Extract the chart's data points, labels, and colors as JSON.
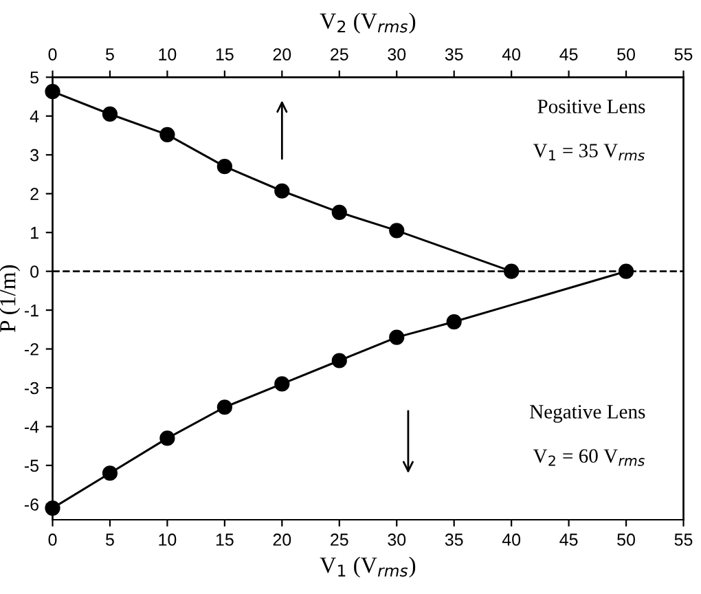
{
  "chart_data": {
    "type": "line",
    "xlabel": "V$_{1}$ (V$_{rms}$)",
    "x2label": "V$_{2}$ (V$_{rms}$)",
    "ylabel": "P (1/m)",
    "xlim": [
      0,
      55
    ],
    "xticks": [
      0,
      5,
      10,
      15,
      20,
      25,
      30,
      35,
      40,
      45,
      50,
      55
    ],
    "x2lim": [
      0,
      55
    ],
    "x2ticks": [
      0,
      5,
      10,
      15,
      20,
      25,
      30,
      35,
      40,
      45,
      50,
      55
    ],
    "ylim": [
      -6.4,
      5
    ],
    "yticks": [
      -6,
      -5,
      -4,
      -3,
      -2,
      -1,
      0,
      1,
      2,
      3,
      4,
      5
    ],
    "marker": "circle",
    "line_style": "solid",
    "grid": false,
    "series": [
      {
        "color": "#000000",
        "axis": "x2",
        "x": [
          0,
          5,
          10,
          15,
          20,
          25,
          30,
          40
        ],
        "values": [
          4.63,
          4.05,
          3.52,
          2.7,
          2.07,
          1.52,
          1.05,
          0
        ]
      },
      {
        "color": "#000000",
        "x": [
          0,
          5,
          10,
          15,
          20,
          25,
          30,
          35,
          50
        ],
        "values": [
          -6.1,
          -5.2,
          -4.3,
          -3.5,
          -2.9,
          -2.3,
          -1.7,
          -1.3,
          0
        ]
      }
    ],
    "ref_lines": [
      {
        "axis": "y",
        "value": 0,
        "line_style": "dashed",
        "color": "#000000"
      }
    ],
    "annotations": [
      "Positive Lens",
      "V$_{1}$ = 35 V$_{rms}$",
      "Negative Lens",
      "V$_{2}$ = 60 V$_{rms}$"
    ]
  }
}
